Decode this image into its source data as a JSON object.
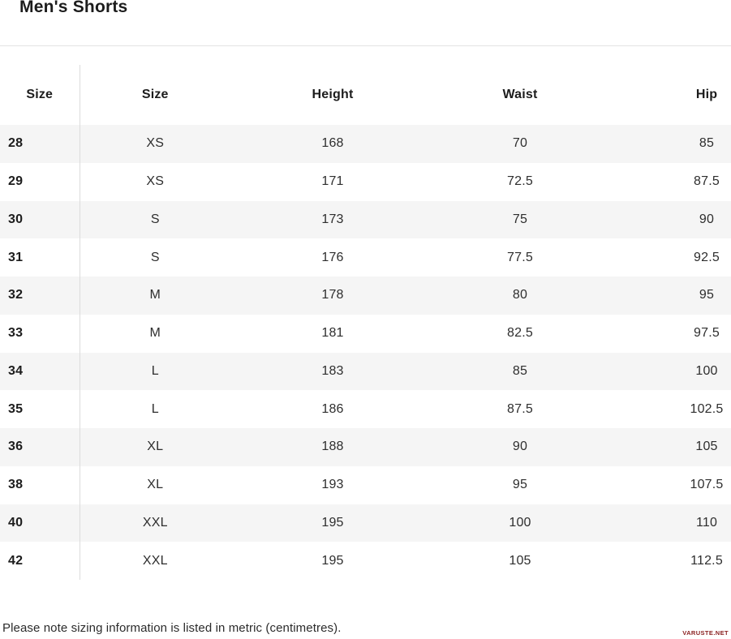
{
  "page": {
    "title": "Men's Shorts",
    "note": "Please note sizing information is listed in metric (centimetres).",
    "watermark": "VARUSTE.NET"
  },
  "table": {
    "columns": [
      "Size",
      "Size",
      "Height",
      "Waist",
      "Hip"
    ],
    "rows": [
      [
        "28",
        "XS",
        "168",
        "70",
        "85"
      ],
      [
        "29",
        "XS",
        "171",
        "72.5",
        "87.5"
      ],
      [
        "30",
        "S",
        "173",
        "75",
        "90"
      ],
      [
        "31",
        "S",
        "176",
        "77.5",
        "92.5"
      ],
      [
        "32",
        "M",
        "178",
        "80",
        "95"
      ],
      [
        "33",
        "M",
        "181",
        "82.5",
        "97.5"
      ],
      [
        "34",
        "L",
        "183",
        "85",
        "100"
      ],
      [
        "35",
        "L",
        "186",
        "87.5",
        "102.5"
      ],
      [
        "36",
        "XL",
        "188",
        "90",
        "105"
      ],
      [
        "38",
        "XL",
        "193",
        "95",
        "107.5"
      ],
      [
        "40",
        "XXL",
        "195",
        "100",
        "110"
      ],
      [
        "42",
        "XXL",
        "195",
        "105",
        "112.5"
      ]
    ]
  },
  "colors": {
    "stripe": "#f5f5f5",
    "rule": "#e3e3e3",
    "column_divider": "#dcdcdc",
    "heading_text": "#1c1c1c",
    "value_text": "#2e2e2e",
    "watermark": "#8b2222"
  }
}
